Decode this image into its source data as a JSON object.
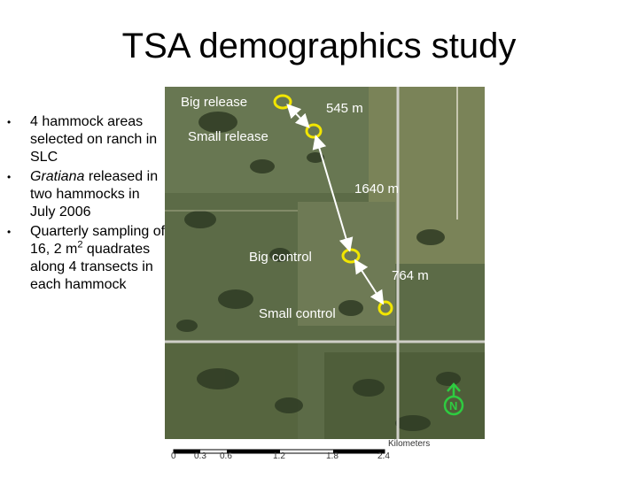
{
  "title": "TSA demographics study",
  "bullets": [
    {
      "text": "4 hammock areas selected on ranch in SLC"
    },
    {
      "italic": "Gratiana",
      "text": " released in two hammocks in July 2006"
    },
    {
      "text": "Quarterly sampling of 16, 2 m",
      "sup": "2",
      "text2": " quadrates along 4 transects in each hammock"
    }
  ],
  "map": {
    "labels": {
      "big_release": "Big release",
      "small_release": "Small release",
      "big_control": "Big control",
      "small_control": "Small control"
    },
    "distances": {
      "d1": "545 m",
      "d2": "1640 m",
      "d3": "764 m"
    },
    "scale": {
      "title": "Kilometers",
      "ticks": [
        "0",
        "0.3",
        "0.6",
        "1.2",
        "1.8",
        "2.4"
      ]
    },
    "north_label": "N",
    "colors": {
      "marker": "#f2e600",
      "label": "#ffffff"
    }
  }
}
